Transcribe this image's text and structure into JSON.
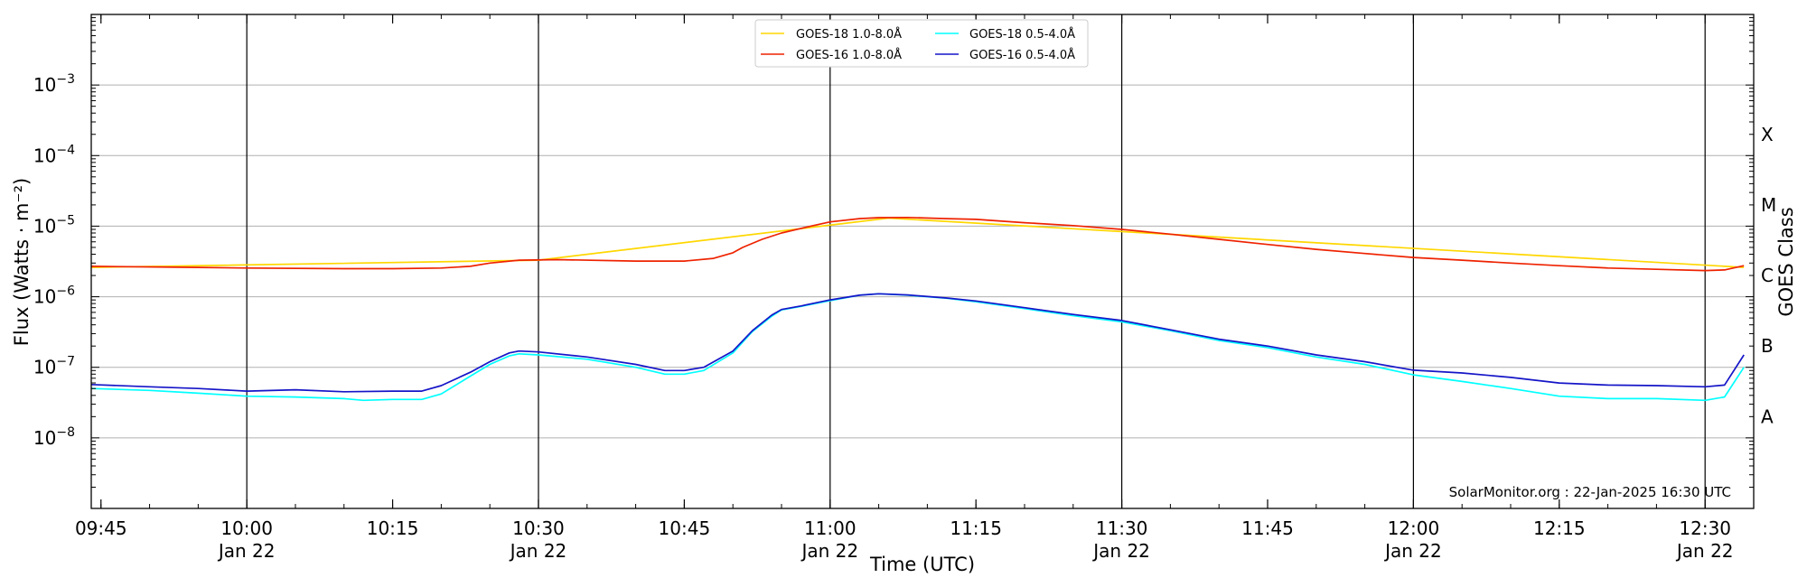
{
  "chart_data": {
    "type": "line",
    "title": "",
    "xlabel": "Time (UTC)",
    "ylabel": "Flux (Watts · m⁻²)",
    "ylabel_right": "GOES Class",
    "y_scale": "log",
    "ylim": [
      1e-09,
      0.01
    ],
    "xlim": [
      "09:44",
      "12:35"
    ],
    "grid": "horizontal",
    "legend_position": "top-center",
    "credit": "SolarMonitor.org : 22-Jan-2025 16:30 UTC",
    "y_ticks": [
      {
        "value": 0.001,
        "mant": "10",
        "exp": "−3"
      },
      {
        "value": 0.0001,
        "mant": "10",
        "exp": "−4"
      },
      {
        "value": 1e-05,
        "mant": "10",
        "exp": "−5"
      },
      {
        "value": 1e-06,
        "mant": "10",
        "exp": "−6"
      },
      {
        "value": 1e-07,
        "mant": "10",
        "exp": "−7"
      },
      {
        "value": 1e-08,
        "mant": "10",
        "exp": "−8"
      }
    ],
    "x_ticks": [
      {
        "time": "09:45",
        "line1": "09:45",
        "line2": "",
        "major": false
      },
      {
        "time": "10:00",
        "line1": "10:00",
        "line2": "Jan 22",
        "major": true
      },
      {
        "time": "10:15",
        "line1": "10:15",
        "line2": "",
        "major": false
      },
      {
        "time": "10:30",
        "line1": "10:30",
        "line2": "Jan 22",
        "major": true
      },
      {
        "time": "10:45",
        "line1": "10:45",
        "line2": "",
        "major": false
      },
      {
        "time": "11:00",
        "line1": "11:00",
        "line2": "Jan 22",
        "major": true
      },
      {
        "time": "11:15",
        "line1": "11:15",
        "line2": "",
        "major": false
      },
      {
        "time": "11:30",
        "line1": "11:30",
        "line2": "Jan 22",
        "major": true
      },
      {
        "time": "11:45",
        "line1": "11:45",
        "line2": "",
        "major": false
      },
      {
        "time": "12:00",
        "line1": "12:00",
        "line2": "Jan 22",
        "major": true
      },
      {
        "time": "12:15",
        "line1": "12:15",
        "line2": "",
        "major": false
      },
      {
        "time": "12:30",
        "line1": "12:30",
        "line2": "Jan 22",
        "major": true
      }
    ],
    "goes_classes": [
      {
        "label": "X",
        "value": 0.0002
      },
      {
        "label": "M",
        "value": 2e-05
      },
      {
        "label": "C",
        "value": 2e-06
      },
      {
        "label": "B",
        "value": 2e-07
      },
      {
        "label": "A",
        "value": 2e-08
      }
    ],
    "series": [
      {
        "name": "GOES-18 1.0-8.0Å",
        "color": "#ffd700",
        "x": [
          "09:44",
          "10:30",
          "11:06",
          "12:34"
        ],
        "y": [
          2.6e-06,
          3.3e-06,
          1.3e-05,
          2.6e-06
        ]
      },
      {
        "name": "GOES-18 0.5-4.0Å",
        "color": "#00ffff",
        "x": [
          "09:44",
          "09:50",
          "09:55",
          "10:00",
          "10:05",
          "10:10",
          "10:12",
          "10:15",
          "10:18",
          "10:20",
          "10:23",
          "10:25",
          "10:27",
          "10:28",
          "10:30",
          "10:35",
          "10:40",
          "10:43",
          "10:45",
          "10:47",
          "10:50",
          "10:52",
          "10:54",
          "10:55",
          "10:57",
          "11:00",
          "11:03",
          "11:05",
          "11:08",
          "11:12",
          "11:15",
          "11:20",
          "11:25",
          "11:30",
          "11:35",
          "11:40",
          "11:45",
          "11:50",
          "11:55",
          "12:00",
          "12:05",
          "12:10",
          "12:15",
          "12:20",
          "12:25",
          "12:30",
          "12:32",
          "12:34"
        ],
        "y": [
          5e-08,
          4.7e-08,
          4.3e-08,
          3.9e-08,
          3.8e-08,
          3.6e-08,
          3.4e-08,
          3.5e-08,
          3.5e-08,
          4.2e-08,
          7.5e-08,
          1.1e-07,
          1.45e-07,
          1.55e-07,
          1.5e-07,
          1.3e-07,
          1e-07,
          8e-08,
          8e-08,
          9e-08,
          1.6e-07,
          3.2e-07,
          5.3e-07,
          6.5e-07,
          7.3e-07,
          8.8e-07,
          1.05e-06,
          1.1e-06,
          1.05e-06,
          9.5e-07,
          8.5e-07,
          6.8e-07,
          5.4e-07,
          4.4e-07,
          3.3e-07,
          2.4e-07,
          1.9e-07,
          1.4e-07,
          1.1e-07,
          7.8e-08,
          6.3e-08,
          5e-08,
          3.9e-08,
          3.6e-08,
          3.6e-08,
          3.4e-08,
          3.8e-08,
          1e-07
        ]
      },
      {
        "name": "GOES-16 1.0-8.0Å",
        "color": "#ee2200",
        "x": [
          "09:44",
          "09:55",
          "10:00",
          "10:10",
          "10:15",
          "10:20",
          "10:23",
          "10:25",
          "10:28",
          "10:32",
          "10:40",
          "10:45",
          "10:48",
          "10:50",
          "10:51",
          "10:53",
          "10:55",
          "10:58",
          "11:00",
          "11:03",
          "11:05",
          "11:08",
          "11:12",
          "11:15",
          "11:20",
          "11:25",
          "11:30",
          "11:35",
          "11:40",
          "11:45",
          "11:50",
          "11:55",
          "12:00",
          "12:05",
          "12:10",
          "12:15",
          "12:20",
          "12:25",
          "12:30",
          "12:32",
          "12:34"
        ],
        "y": [
          2.7e-06,
          2.6e-06,
          2.55e-06,
          2.5e-06,
          2.5e-06,
          2.55e-06,
          2.7e-06,
          3e-06,
          3.3e-06,
          3.35e-06,
          3.2e-06,
          3.2e-06,
          3.5e-06,
          4.2e-06,
          5e-06,
          6.5e-06,
          8e-06,
          1e-05,
          1.15e-05,
          1.28e-05,
          1.32e-05,
          1.33e-05,
          1.28e-05,
          1.25e-05,
          1.12e-05,
          1.02e-05,
          9e-06,
          7.7e-06,
          6.5e-06,
          5.5e-06,
          4.7e-06,
          4.1e-06,
          3.6e-06,
          3.3e-06,
          3e-06,
          2.75e-06,
          2.55e-06,
          2.45e-06,
          2.35e-06,
          2.4e-06,
          2.75e-06
        ]
      },
      {
        "name": "GOES-16 0.5-4.0Å",
        "color": "#1515c8",
        "x": [
          "09:44",
          "09:50",
          "09:55",
          "10:00",
          "10:05",
          "10:10",
          "10:15",
          "10:18",
          "10:20",
          "10:23",
          "10:25",
          "10:27",
          "10:28",
          "10:30",
          "10:35",
          "10:40",
          "10:43",
          "10:45",
          "10:47",
          "10:50",
          "10:52",
          "10:54",
          "10:55",
          "10:57",
          "11:00",
          "11:03",
          "11:05",
          "11:08",
          "11:12",
          "11:15",
          "11:20",
          "11:25",
          "11:30",
          "11:35",
          "11:40",
          "11:45",
          "11:50",
          "11:55",
          "12:00",
          "12:05",
          "12:10",
          "12:15",
          "12:20",
          "12:25",
          "12:30",
          "12:32",
          "12:34"
        ],
        "y": [
          5.7e-08,
          5.3e-08,
          5e-08,
          4.6e-08,
          4.8e-08,
          4.5e-08,
          4.6e-08,
          4.6e-08,
          5.5e-08,
          8.5e-08,
          1.2e-07,
          1.6e-07,
          1.7e-07,
          1.65e-07,
          1.4e-07,
          1.1e-07,
          9e-08,
          9e-08,
          1e-07,
          1.7e-07,
          3.3e-07,
          5.5e-07,
          6.6e-07,
          7.4e-07,
          9e-07,
          1.05e-06,
          1.1e-06,
          1.06e-06,
          9.6e-07,
          8.7e-07,
          7e-07,
          5.6e-07,
          4.6e-07,
          3.4e-07,
          2.5e-07,
          2e-07,
          1.5e-07,
          1.2e-07,
          9.1e-08,
          8.3e-08,
          7.2e-08,
          6e-08,
          5.6e-08,
          5.5e-08,
          5.3e-08,
          5.6e-08,
          1.5e-07
        ]
      }
    ]
  }
}
